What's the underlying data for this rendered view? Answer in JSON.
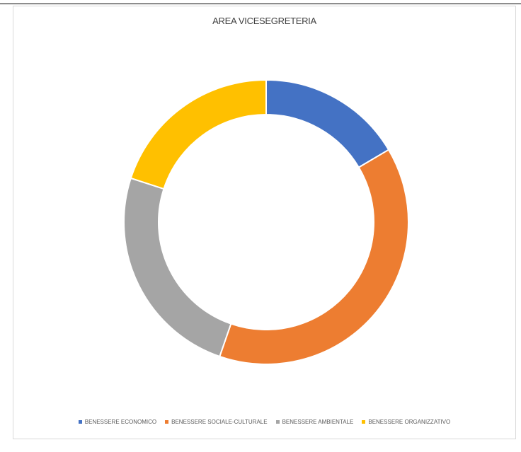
{
  "chart_data": {
    "type": "pie",
    "variant": "doughnut",
    "title": "AREA VICESEGRETERIA",
    "categories": [
      "BENESSERE ECONOMICO",
      "BENESSERE SOCIALE-CULTURALE",
      "BENESSERE AMBIENTALE",
      "BENESSERE ORGANIZZATIVO"
    ],
    "values": [
      16.5,
      38.8,
      24.7,
      20.0
    ],
    "colors": [
      "#4472c4",
      "#ed7d31",
      "#a5a5a5",
      "#ffc000"
    ],
    "legend_position": "bottom",
    "start_angle_deg": 0,
    "direction": "clockwise"
  }
}
